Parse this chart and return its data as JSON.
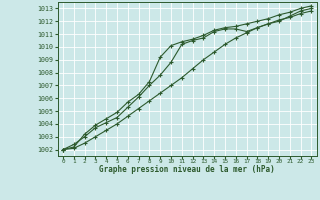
{
  "xlabel": "Graphe pression niveau de la mer (hPa)",
  "bg_color": "#cce8e8",
  "grid_color": "#ffffff",
  "line_color": "#2d5a2d",
  "ylim": [
    1001.5,
    1013.5
  ],
  "xlim": [
    -0.5,
    23.5
  ],
  "yticks": [
    1002,
    1003,
    1004,
    1005,
    1006,
    1007,
    1008,
    1009,
    1010,
    1011,
    1012,
    1013
  ],
  "xticks": [
    0,
    1,
    2,
    3,
    4,
    5,
    6,
    7,
    8,
    9,
    10,
    11,
    12,
    13,
    14,
    15,
    16,
    17,
    18,
    19,
    20,
    21,
    22,
    23
  ],
  "series1": [
    1002.0,
    1002.4,
    1003.0,
    1003.7,
    1004.1,
    1004.5,
    1005.3,
    1006.1,
    1007.0,
    1007.8,
    1008.8,
    1010.2,
    1010.5,
    1010.7,
    1011.2,
    1011.4,
    1011.4,
    1011.2,
    1011.5,
    1011.8,
    1012.0,
    1012.4,
    1012.8,
    1013.0
  ],
  "series2": [
    1002.0,
    1002.2,
    1003.2,
    1003.9,
    1004.4,
    1004.9,
    1005.7,
    1006.3,
    1007.3,
    1009.2,
    1010.1,
    1010.4,
    1010.6,
    1010.9,
    1011.3,
    1011.5,
    1011.6,
    1011.8,
    1012.0,
    1012.2,
    1012.5,
    1012.7,
    1013.0,
    1013.2
  ],
  "series3": [
    1002.0,
    1002.1,
    1002.5,
    1003.0,
    1003.5,
    1004.0,
    1004.6,
    1005.2,
    1005.8,
    1006.4,
    1007.0,
    1007.6,
    1008.3,
    1009.0,
    1009.6,
    1010.2,
    1010.7,
    1011.1,
    1011.5,
    1011.8,
    1012.1,
    1012.3,
    1012.6,
    1012.8
  ]
}
